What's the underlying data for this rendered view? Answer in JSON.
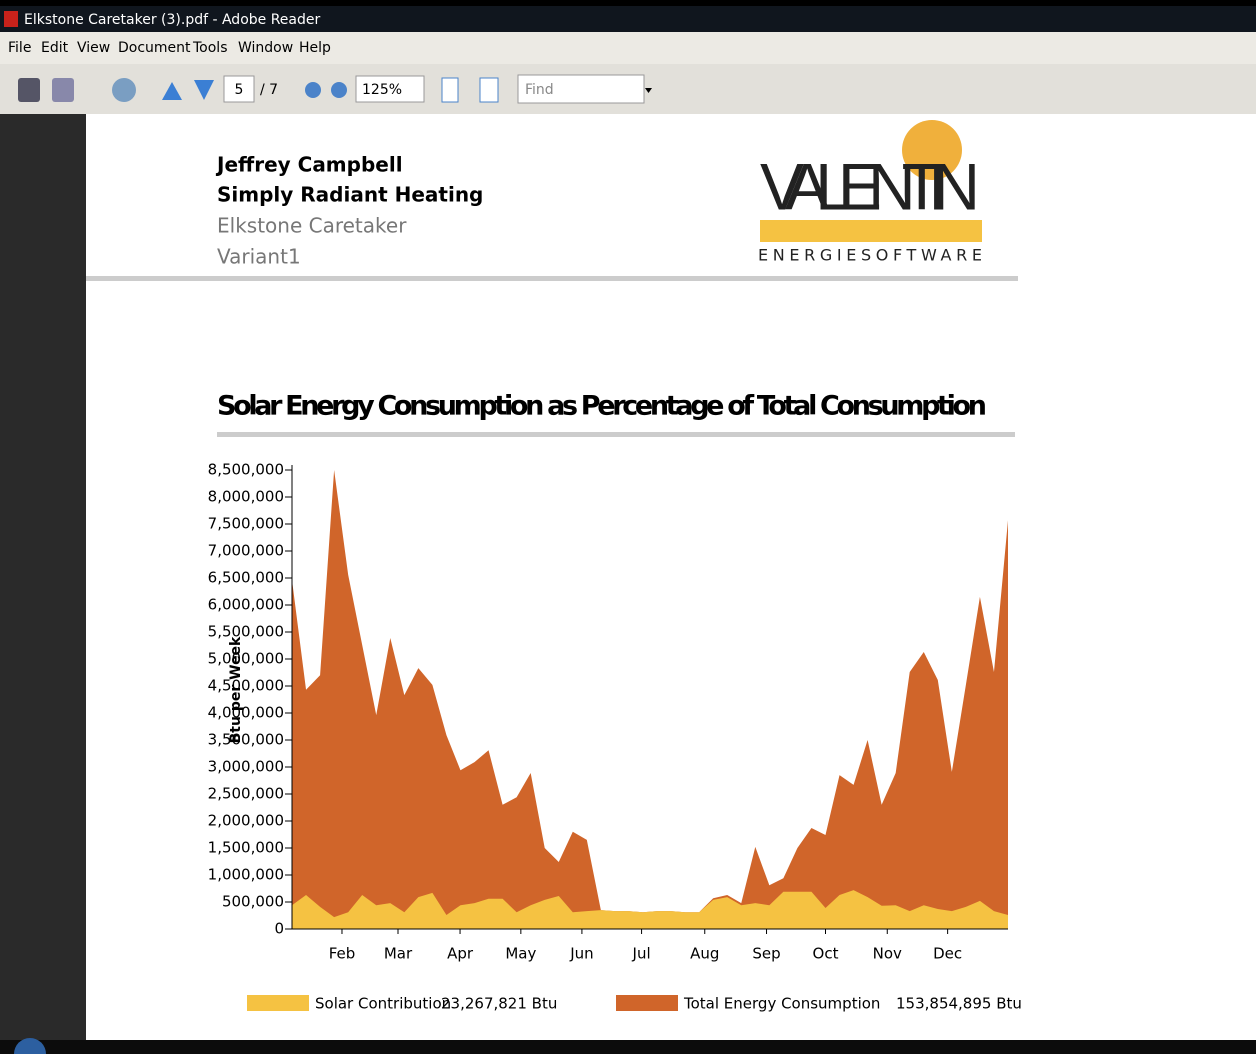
{
  "window": {
    "title": "Elkstone Caretaker (3).pdf - Adobe Reader"
  },
  "menu": [
    "File",
    "Edit",
    "View",
    "Document",
    "Tools",
    "Window",
    "Help"
  ],
  "toolbar": {
    "page": "5",
    "page_count": "/ 7",
    "zoom": "125%",
    "find": "Find"
  },
  "header": {
    "lines": [
      "Jeffrey Campbell",
      "Simply Radiant Heating",
      "Elkstone Caretaker",
      "Variant1"
    ],
    "logo": {
      "name": "VALENTIN",
      "sub": "ENERGIESOFTWARE"
    }
  },
  "chart_data": {
    "type": "area",
    "title": "Solar Energy Consumption as Percentage of Total Consumption",
    "ylabel": "Btu per Week",
    "x": [
      1,
      2,
      3,
      4,
      5,
      6,
      7,
      8,
      9,
      10,
      11,
      12,
      13,
      14,
      15,
      16,
      17,
      18,
      19,
      20,
      21,
      22,
      23,
      24,
      25,
      26,
      27,
      28,
      29,
      30,
      31,
      32,
      33,
      34,
      35,
      36,
      37,
      38,
      39,
      40,
      41,
      42,
      43,
      44,
      45,
      46,
      47,
      48,
      49,
      50,
      51,
      52
    ],
    "xlim": [
      1,
      52
    ],
    "xticks": [
      {
        "value": 4.56,
        "label": "Feb"
      },
      {
        "value": 8.55,
        "label": "Mar"
      },
      {
        "value": 12.97,
        "label": "Apr"
      },
      {
        "value": 17.3,
        "label": "May"
      },
      {
        "value": 21.65,
        "label": "Jun"
      },
      {
        "value": 25.9,
        "label": "Jul"
      },
      {
        "value": 30.4,
        "label": "Aug"
      },
      {
        "value": 34.8,
        "label": "Sep"
      },
      {
        "value": 39.0,
        "label": "Oct"
      },
      {
        "value": 43.4,
        "label": "Nov"
      },
      {
        "value": 47.7,
        "label": "Dec"
      }
    ],
    "ylim": [
      0,
      8500000
    ],
    "yticks": [
      0,
      {
        "value": 500000,
        "label": "500,000"
      },
      {
        "value": 1000000,
        "label": "1,000,000"
      },
      {
        "value": 1500000,
        "label": "1,500,000"
      },
      {
        "value": 2000000,
        "label": "2,000,000"
      },
      {
        "value": 2500000,
        "label": "2,500,000"
      },
      {
        "value": 3000000,
        "label": "3,000,000"
      },
      {
        "value": 3500000,
        "label": "3,500,000"
      },
      {
        "value": 4000000,
        "label": "4,000,000"
      },
      {
        "value": 4500000,
        "label": "4,500,000"
      },
      {
        "value": 5000000,
        "label": "5,000,000"
      },
      {
        "value": 5500000,
        "label": "5,500,000"
      },
      {
        "value": 6000000,
        "label": "6,000,000"
      },
      {
        "value": 6500000,
        "label": "6,500,000"
      },
      {
        "value": 7000000,
        "label": "7,000,000"
      },
      {
        "value": 7500000,
        "label": "7,500,000"
      },
      {
        "value": 8000000,
        "label": "8,000,000"
      },
      {
        "value": 8500000,
        "label": "8,500,000"
      }
    ],
    "series": [
      {
        "name": "Solar Contribution",
        "total": "23,267,821 Btu",
        "color": "#f5c242",
        "values": [
          440000,
          630000,
          410000,
          220000,
          310000,
          630000,
          440000,
          480000,
          310000,
          590000,
          670000,
          260000,
          440000,
          480000,
          560000,
          560000,
          310000,
          440000,
          540000,
          610000,
          310000,
          330000,
          350000,
          330000,
          330000,
          310000,
          330000,
          330000,
          310000,
          310000,
          540000,
          590000,
          440000,
          480000,
          440000,
          690000,
          690000,
          690000,
          390000,
          630000,
          720000,
          590000,
          430000,
          440000,
          330000,
          440000,
          370000,
          330000,
          410000,
          520000,
          330000,
          260000
        ]
      },
      {
        "name": "Total Energy Consumption",
        "total": "153,854,895 Btu",
        "color": "#d0652a",
        "values": [
          6460000,
          4430000,
          4700000,
          8500000,
          6560000,
          5260000,
          3960000,
          5390000,
          4330000,
          4830000,
          4520000,
          3590000,
          2940000,
          3090000,
          3310000,
          2300000,
          2440000,
          2890000,
          1500000,
          1240000,
          1800000,
          1650000,
          350000,
          330000,
          330000,
          310000,
          330000,
          330000,
          310000,
          310000,
          570000,
          630000,
          480000,
          1520000,
          810000,
          940000,
          1500000,
          1870000,
          1740000,
          2850000,
          2670000,
          3500000,
          2300000,
          2890000,
          4760000,
          5130000,
          4610000,
          2910000,
          4520000,
          6150000,
          4760000,
          7570000
        ]
      }
    ]
  }
}
